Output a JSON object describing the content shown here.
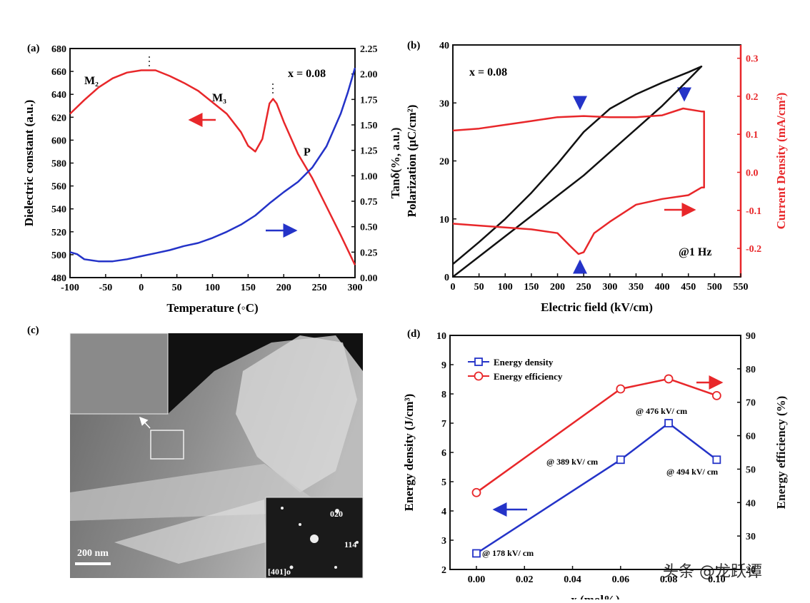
{
  "chart_data": [
    {
      "type": "line",
      "label": "(a)",
      "xlabel": "Temperature (◦C)",
      "ylabel": "Dielectric constant (a.u.)",
      "y2label": "Tanδ(%, a.u.)",
      "xlim": [
        -100,
        300
      ],
      "xticks": [
        -100,
        -50,
        0,
        50,
        100,
        150,
        200,
        250,
        300
      ],
      "ylim": [
        480,
        680
      ],
      "yticks": [
        480,
        500,
        520,
        540,
        560,
        580,
        600,
        620,
        640,
        660,
        680
      ],
      "y2lim": [
        0,
        2.25
      ],
      "y2ticks": [
        {
          "value": 0,
          "label": "0.00"
        },
        0.25,
        {
          "value": 0.5,
          "label": "0.50"
        },
        0.75,
        {
          "value": 1,
          "label": "1.00"
        },
        1.25,
        {
          "value": 1.5,
          "label": "1.50"
        },
        1.75,
        {
          "value": 2,
          "label": "2.00"
        },
        2.25
      ],
      "annotations": [
        "M₂",
        "M₃",
        "P",
        "x = 0.08"
      ],
      "series": [
        {
          "color": "#e8272a",
          "x": [
            -100,
            -80,
            -60,
            -40,
            -20,
            0,
            20,
            40,
            60,
            80,
            100,
            120,
            140,
            150,
            160,
            170,
            180,
            185,
            190,
            200,
            220,
            240,
            260,
            280,
            300
          ],
          "values": [
            623,
            635,
            646,
            654,
            659,
            661,
            661,
            656,
            650,
            643,
            633,
            623,
            607,
            595,
            590,
            601,
            632,
            636,
            632,
            616,
            588,
            567,
            542,
            517,
            491
          ]
        },
        {
          "color": "#2433c8",
          "axis": "y2",
          "x": [
            -100,
            -90,
            -80,
            -60,
            -40,
            -20,
            0,
            20,
            40,
            60,
            80,
            100,
            120,
            140,
            160,
            180,
            200,
            220,
            240,
            260,
            280,
            290,
            300
          ],
          "values": [
            0.25,
            0.23,
            0.18,
            0.16,
            0.16,
            0.18,
            0.21,
            0.24,
            0.27,
            0.31,
            0.34,
            0.39,
            0.45,
            0.52,
            0.61,
            0.73,
            0.84,
            0.94,
            1.08,
            1.29,
            1.61,
            1.82,
            2.06
          ]
        }
      ]
    },
    {
      "type": "line",
      "label": "(b)",
      "xlabel": "Electric field (kV/cm)",
      "ylabel": "Polarization (μC/cm²)",
      "y2label": "Current Density (mA/cm²)",
      "xlim": [
        0,
        550
      ],
      "xticks": [
        0,
        50,
        100,
        150,
        200,
        250,
        300,
        350,
        400,
        450,
        500,
        550
      ],
      "ylim": [
        0,
        40
      ],
      "yticks": [
        0,
        10,
        20,
        30,
        40
      ],
      "y2lim": [
        -0.275,
        0.335
      ],
      "y2ticks": [
        -0.2,
        -0.1,
        {
          "value": 0,
          "label": "0.0"
        },
        0.1,
        0.2,
        0.3
      ],
      "y2_color": "#e8272a",
      "annotations": [
        "x = 0.08",
        "@1 Hz"
      ],
      "series": [
        {
          "color": "#111111",
          "x": [
            0,
            50,
            100,
            150,
            200,
            250,
            300,
            350,
            400,
            450,
            475,
            450,
            400,
            350,
            300,
            250,
            200,
            150,
            100,
            50,
            0
          ],
          "values": [
            0,
            3.5,
            7,
            10.5,
            14,
            17.5,
            21.5,
            25.5,
            29.5,
            34,
            36.3,
            35.3,
            33.5,
            31.5,
            29,
            25,
            19.5,
            14.5,
            10,
            6,
            2.2
          ]
        },
        {
          "color": "#e8272a",
          "axis": "y2",
          "x": [
            0,
            50,
            100,
            150,
            200,
            250,
            300,
            350,
            400,
            440,
            475,
            480,
            480,
            475,
            450,
            400,
            350,
            300,
            270,
            250,
            240,
            225,
            200,
            150,
            100,
            50,
            0
          ],
          "values": [
            0.11,
            0.115,
            0.125,
            0.135,
            0.145,
            0.148,
            0.145,
            0.145,
            0.15,
            0.168,
            0.16,
            0.16,
            -0.04,
            -0.04,
            -0.06,
            -0.07,
            -0.085,
            -0.13,
            -0.16,
            -0.21,
            -0.215,
            -0.195,
            -0.16,
            -0.15,
            -0.145,
            -0.14,
            -0.135
          ]
        }
      ]
    },
    {
      "type": "line",
      "label": "(d)",
      "xlabel": "x (mol%)",
      "ylabel": "Energy density (J/cm³)",
      "y2label": "Energy efficiency (%)",
      "xlim": [
        -0.011,
        0.11
      ],
      "xticks": [
        {
          "value": 0,
          "label": "0.00"
        },
        0.02,
        0.04,
        0.06,
        0.08,
        {
          "value": 0.1,
          "label": "0.10"
        }
      ],
      "ylim": [
        2,
        10
      ],
      "yticks": [
        2,
        3,
        4,
        5,
        6,
        7,
        8,
        9,
        10
      ],
      "y2lim": [
        20,
        90
      ],
      "y2ticks": [
        20,
        30,
        40,
        50,
        60,
        70,
        80,
        90
      ],
      "legend": "upper left",
      "annotations": [
        "@ 178 kV/ cm",
        "@ 389 kV/ cm",
        "@ 476 kV/ cm",
        "@ 494 kV/ cm"
      ],
      "x": [
        0,
        0.06,
        0.08,
        0.1
      ],
      "series": [
        {
          "name": "Energy density",
          "color": "#2433c8",
          "marker": "square",
          "values": [
            2.55,
            5.75,
            7.0,
            5.75
          ]
        },
        {
          "name": "Energy efficiency",
          "color": "#e8272a",
          "marker": "circle",
          "axis": "y2",
          "values": [
            43,
            74,
            77,
            72
          ]
        }
      ]
    }
  ],
  "image": {
    "label": "(c)",
    "scale": "200 nm",
    "spots": [
      "020",
      "114",
      "[401]o"
    ]
  },
  "watermark": "头条 @龙跃谭"
}
